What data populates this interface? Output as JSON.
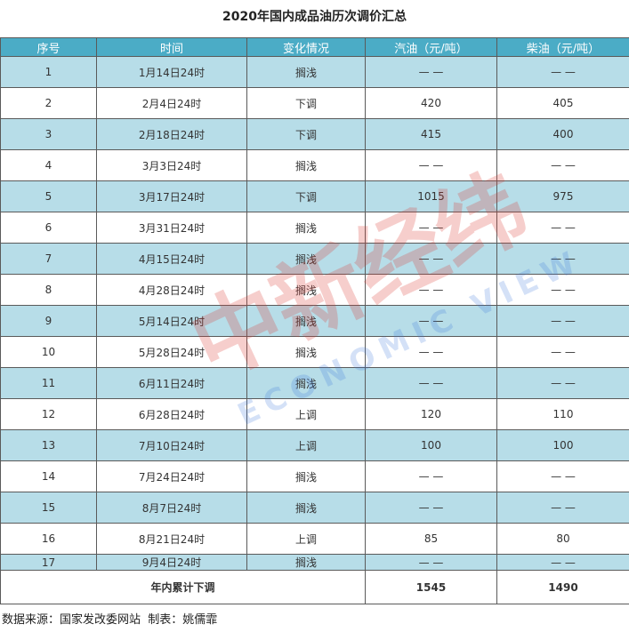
{
  "title": "2020年国内成品油历次调价汇总",
  "table": {
    "header": [
      "序号",
      "时间",
      "变化情况",
      "汽油（元/吨）",
      "柴油（元/吨）"
    ],
    "rows": [
      [
        1,
        "1月14日24时",
        "搁浅",
        "— —",
        "— —"
      ],
      [
        2,
        "2月4日24时",
        "下调",
        420,
        405
      ],
      [
        3,
        "2月18日24时",
        "下调",
        415,
        400
      ],
      [
        4,
        "3月3日24时",
        "搁浅",
        "— —",
        "— —"
      ],
      [
        5,
        "3月17日24时",
        "下调",
        1015,
        975
      ],
      [
        6,
        "3月31日24时",
        "搁浅",
        "— —",
        "— —"
      ],
      [
        7,
        "4月15日24时",
        "搁浅",
        "— —",
        "— —"
      ],
      [
        8,
        "4月28日24时",
        "搁浅",
        "— —",
        "— —"
      ],
      [
        9,
        "5月14日24时",
        "搁浅",
        "— —",
        "— —"
      ],
      [
        10,
        "5月28日24时",
        "搁浅",
        "— —",
        "— —"
      ],
      [
        11,
        "6月11日24时",
        "搁浅",
        "— —",
        "— —"
      ],
      [
        12,
        "6月28日24时",
        "上调",
        120,
        110
      ],
      [
        13,
        "7月10日24时",
        "上调",
        100,
        100
      ],
      [
        14,
        "7月24日24时",
        "搁浅",
        "— —",
        "— —"
      ],
      [
        15,
        "8月7日24时",
        "搁浅",
        "— —",
        "— —"
      ],
      [
        16,
        "8月21日24时",
        "上调",
        85,
        80
      ],
      [
        17,
        "9月4日24时",
        "搁浅",
        "— —",
        "— —"
      ]
    ],
    "total": {
      "label": "年内累计下调",
      "gasoline": 1545,
      "diesel": 1490
    }
  },
  "footer": "数据来源：国家发改委网站  制表：姚儒霏",
  "watermark": {
    "brand": "中新经纬",
    "english": "ECONOMIC VIEW"
  }
}
